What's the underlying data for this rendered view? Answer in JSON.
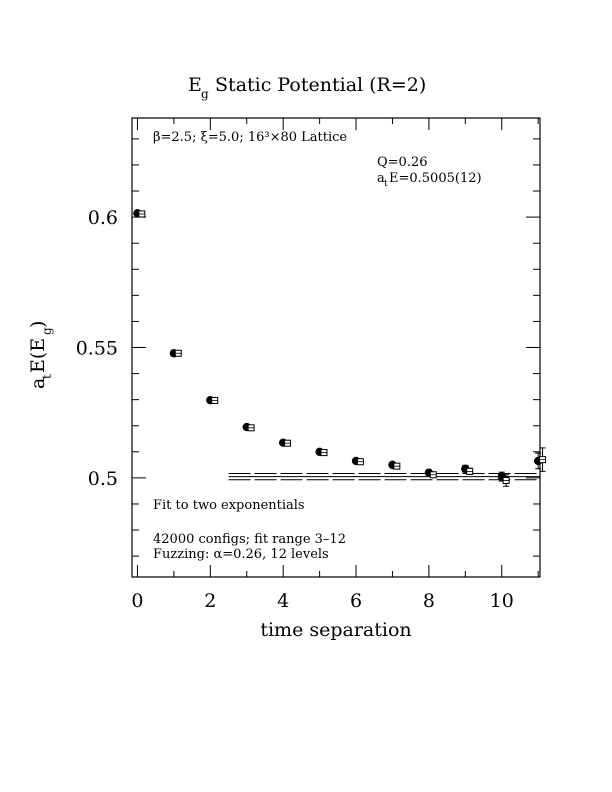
{
  "chart_data": {
    "type": "scatter",
    "title_main": "E",
    "title_sub": "g",
    "title_rest": " Static Potential (R=2)",
    "xlabel": "time separation",
    "ylabel_a": "a",
    "ylabel_t": "t",
    "ylabel_E": "E(E",
    "ylabel_g": "g",
    "ylabel_close": ")",
    "xlim": [
      -0.15,
      11.05
    ],
    "ylim": [
      0.462,
      0.638
    ],
    "xticks": [
      0,
      2,
      4,
      6,
      8,
      10
    ],
    "xtick_labels": [
      "0",
      "2",
      "4",
      "6",
      "8",
      "10"
    ],
    "yticks": [
      0.5,
      0.55,
      0.6
    ],
    "ytick_labels": [
      "0.5",
      "0.55",
      "0.6"
    ],
    "annotations": {
      "lattice": "β=2.5; ξ=5.0; 16³×80 Lattice",
      "q": "Q=0.26",
      "ate_a": "a",
      "ate_t": "t",
      "ate_rest": "E=0.5005(12)",
      "fit": "Fit to two exponentials",
      "configs": "42000 configs; fit range 3–12",
      "fuzzing": "Fuzzing: α=0.26, 12 levels"
    },
    "series": [
      {
        "marker": "filled-circle",
        "x": [
          0,
          1,
          2,
          3,
          4,
          5,
          6,
          7,
          8,
          9,
          10,
          11
        ],
        "y": [
          0.6015,
          0.5478,
          0.5298,
          0.5195,
          0.5135,
          0.51,
          0.5065,
          0.505,
          0.502,
          0.5035,
          0.5005,
          0.5065
        ],
        "err": [
          0.0004,
          0.0004,
          0.0004,
          0.0005,
          0.0005,
          0.0006,
          0.0007,
          0.0008,
          0.001,
          0.0013,
          0.0017,
          0.003
        ]
      },
      {
        "marker": "open-square",
        "x": [
          0.12,
          1.12,
          2.12,
          3.12,
          4.12,
          5.12,
          6.12,
          7.12,
          8.12,
          9.12,
          10.12,
          11.12
        ],
        "y": [
          0.6012,
          0.5478,
          0.5297,
          0.5192,
          0.5133,
          0.5097,
          0.5062,
          0.5045,
          0.5012,
          0.5025,
          0.499,
          0.507
        ],
        "err": [
          0.0003,
          0.0003,
          0.0003,
          0.0004,
          0.0004,
          0.0005,
          0.0006,
          0.0007,
          0.0009,
          0.0012,
          0.0022,
          0.0045
        ]
      }
    ],
    "fit_band": {
      "x_range": [
        2.5,
        11.05
      ],
      "center": 0.5005,
      "error": 0.0012
    }
  }
}
